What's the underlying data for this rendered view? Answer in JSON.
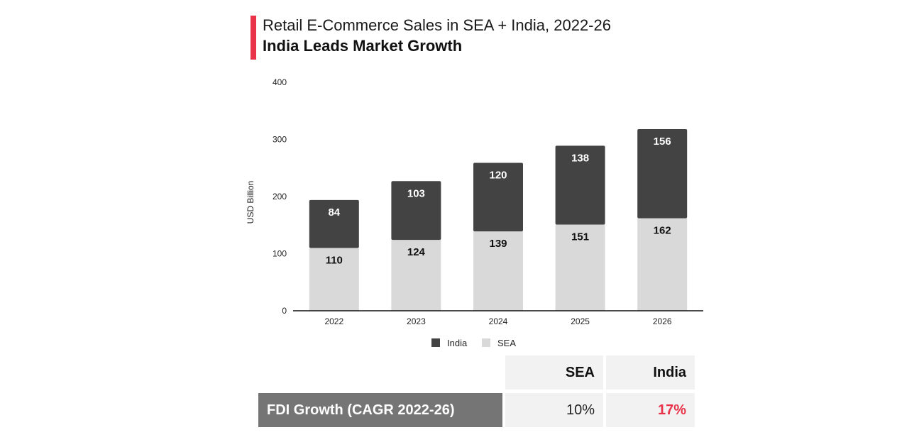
{
  "header": {
    "subtitle": "Retail E-Commerce Sales in SEA + India, 2022-26",
    "title": "India Leads Market Growth",
    "accent_color": "#e8334a"
  },
  "chart_data": {
    "type": "bar",
    "stacked": true,
    "categories": [
      "2022",
      "2023",
      "2024",
      "2025",
      "2026"
    ],
    "series": [
      {
        "name": "SEA",
        "values": [
          110,
          124,
          139,
          151,
          162
        ],
        "color": "#d9d9d9",
        "label_color": "#111111"
      },
      {
        "name": "India",
        "values": [
          84,
          103,
          120,
          138,
          156
        ],
        "color": "#434343",
        "label_color": "#ffffff"
      }
    ],
    "ylabel": "USD Billion",
    "xlabel": "",
    "ylim": [
      0,
      400
    ],
    "yticks": [
      "0",
      "100",
      "200",
      "300",
      "400"
    ],
    "legend": [
      {
        "name": "India",
        "color": "#434343"
      },
      {
        "name": "SEA",
        "color": "#d9d9d9"
      }
    ],
    "legend_position": "bottom"
  },
  "table": {
    "headers": [
      "SEA",
      "India"
    ],
    "row_label": "FDI Growth (CAGR 2022-26)",
    "row_label_bg": "#757575",
    "values": [
      "10%",
      "17%"
    ],
    "highlight_color": "#e8334a"
  }
}
